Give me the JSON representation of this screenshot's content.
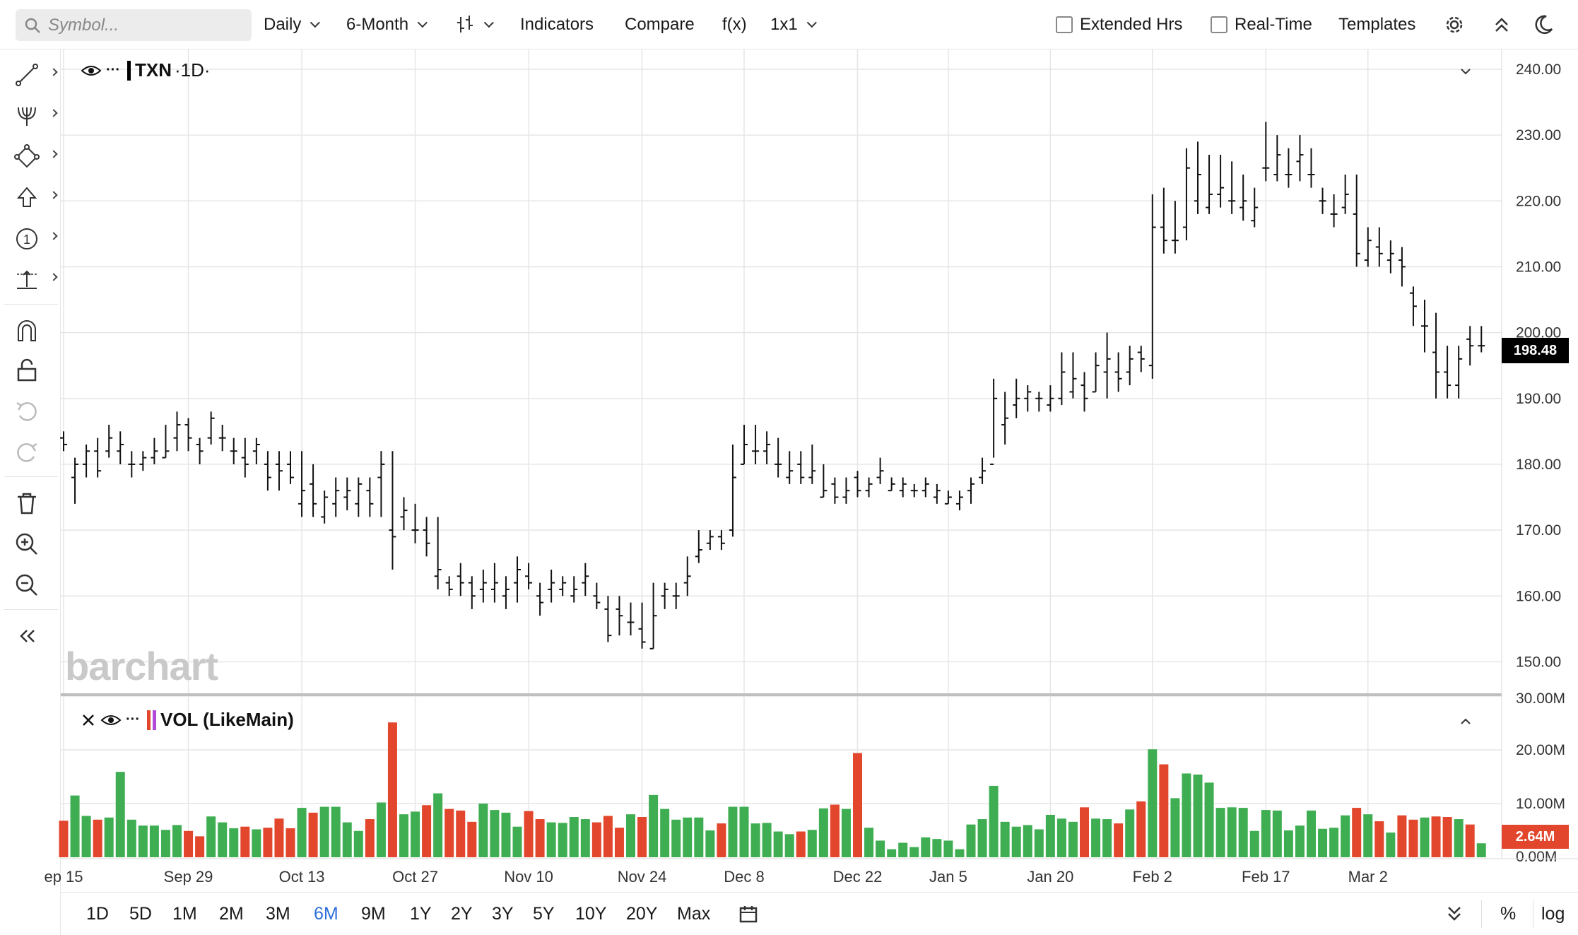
{
  "toolbar": {
    "search_placeholder": "Symbol...",
    "interval": "Daily",
    "period": "6-Month",
    "indicators": "Indicators",
    "compare": "Compare",
    "fx": "f(x)",
    "layout": "1x1",
    "extended_hours": "Extended Hrs",
    "real_time": "Real-Time",
    "templates": "Templates"
  },
  "legend": {
    "symbol": "TXN",
    "timeframe": "·1D·",
    "volume": "VOL (LikeMain)",
    "more": "···"
  },
  "watermark": "barchart",
  "colors": {
    "up": "#3fae52",
    "down": "#e2462c",
    "active_range": "#2d6fd9",
    "price_badge": "#000000"
  },
  "range_buttons": [
    "1D",
    "5D",
    "1M",
    "2M",
    "3M",
    "6M",
    "9M",
    "1Y",
    "2Y",
    "3Y",
    "5Y",
    "10Y",
    "20Y",
    "Max"
  ],
  "active_range": "6M",
  "bottom_right": {
    "percent": "%",
    "log": "log"
  },
  "chart_data": {
    "type": "ohlc_bar_with_volume",
    "symbol": "TXN",
    "interval": "1D",
    "last_price": "198.48",
    "last_volume": "2.64M",
    "price_axis": {
      "min": 145,
      "max": 243,
      "ticks": [
        "240.00",
        "230.00",
        "220.00",
        "210.00",
        "200.00",
        "190.00",
        "180.00",
        "170.00",
        "160.00",
        "150.00"
      ]
    },
    "volume_axis": {
      "max": 30,
      "unit": "M",
      "ticks": [
        "30.00M",
        "20.00M",
        "10.00M",
        "0.00M"
      ]
    },
    "x_labels": [
      "ep 15",
      "Sep 29",
      "Oct 13",
      "Oct 27",
      "Nov 10",
      "Nov 24",
      "Dec 8",
      "Dec 22",
      "Jan 5",
      "Jan 20",
      "Feb 2",
      "Feb 17",
      "Mar 2"
    ],
    "x_label_index": [
      0,
      11,
      21,
      31,
      41,
      51,
      60,
      70,
      78,
      87,
      96,
      106,
      115
    ],
    "bars": [
      [
        184,
        185,
        182,
        183,
        6.8
      ],
      [
        178,
        181,
        174,
        180,
        11.5
      ],
      [
        180,
        183,
        178,
        182,
        7.7
      ],
      [
        182,
        184,
        178,
        179,
        7.0
      ],
      [
        182,
        186,
        181,
        184,
        7.4
      ],
      [
        182,
        185,
        180,
        183,
        15.9
      ],
      [
        180,
        182,
        178,
        180,
        7.0
      ],
      [
        180,
        182,
        179,
        181,
        5.9
      ],
      [
        181,
        184,
        180,
        182,
        5.9
      ],
      [
        181,
        186,
        181,
        182,
        5.1
      ],
      [
        184,
        188,
        182,
        186,
        6.0
      ],
      [
        186,
        187,
        182,
        184,
        4.9
      ],
      [
        183,
        184,
        180,
        182,
        3.9
      ],
      [
        184,
        188,
        183,
        187,
        7.6
      ],
      [
        184,
        186,
        182,
        184,
        6.5
      ],
      [
        182,
        184,
        180,
        182,
        5.4
      ],
      [
        181,
        184,
        178,
        180,
        5.7
      ],
      [
        182,
        184,
        180,
        183,
        5.2
      ],
      [
        180,
        182,
        176,
        178,
        5.5
      ],
      [
        180,
        182,
        176,
        179,
        7.2
      ],
      [
        180,
        182,
        177,
        178,
        5.4
      ],
      [
        174,
        182,
        172,
        176,
        9.2
      ],
      [
        177,
        180,
        172,
        174,
        8.3
      ],
      [
        172,
        176,
        171,
        175,
        9.4
      ],
      [
        174,
        178,
        172,
        176,
        9.4
      ],
      [
        175,
        178,
        173,
        176,
        6.5
      ],
      [
        174,
        178,
        172,
        177,
        4.9
      ],
      [
        176,
        178,
        172,
        174,
        7.1
      ],
      [
        178,
        182,
        172,
        180,
        10.2
      ],
      [
        170,
        182,
        164,
        169,
        25.1
      ],
      [
        172,
        175,
        170,
        173,
        8.0
      ],
      [
        170,
        174,
        168,
        170,
        8.5
      ],
      [
        170,
        172,
        166,
        168,
        9.7
      ],
      [
        163,
        172,
        161,
        164,
        11.9
      ],
      [
        162,
        163,
        160,
        161,
        9.0
      ],
      [
        163,
        165,
        160,
        162,
        8.7
      ],
      [
        162,
        163,
        158,
        160,
        6.6
      ],
      [
        161,
        164,
        159,
        162,
        10.0
      ],
      [
        161,
        165,
        159,
        162,
        8.8
      ],
      [
        160,
        163,
        158,
        161,
        8.3
      ],
      [
        162,
        166,
        159,
        164,
        5.7
      ],
      [
        163,
        165,
        161,
        162,
        8.6
      ],
      [
        160,
        162,
        157,
        159,
        7.1
      ],
      [
        161,
        164,
        159,
        162,
        6.5
      ],
      [
        161,
        163,
        160,
        162,
        6.4
      ],
      [
        160,
        163,
        159,
        161,
        7.5
      ],
      [
        162,
        165,
        160,
        163,
        7.1
      ],
      [
        160,
        162,
        158,
        159,
        6.5
      ],
      [
        158,
        160,
        153,
        154,
        7.7
      ],
      [
        158,
        160,
        154,
        157,
        5.5
      ],
      [
        156,
        159,
        154,
        156,
        8.0
      ],
      [
        155,
        159,
        152,
        153,
        7.5
      ],
      [
        152,
        162,
        152,
        157,
        11.6
      ],
      [
        160,
        162,
        158,
        161,
        9.0
      ],
      [
        160,
        162,
        158,
        160,
        7.0
      ],
      [
        162,
        166,
        160,
        163,
        7.4
      ],
      [
        166,
        170,
        165,
        167,
        7.4
      ],
      [
        168,
        170,
        167,
        169,
        5.0
      ],
      [
        169,
        170,
        167,
        168,
        6.3
      ],
      [
        170,
        183,
        169,
        178,
        9.4
      ],
      [
        180,
        186,
        180,
        183,
        9.4
      ],
      [
        182,
        186,
        180,
        182,
        6.3
      ],
      [
        182,
        185,
        180,
        183,
        6.4
      ],
      [
        180,
        184,
        178,
        180,
        4.8
      ],
      [
        178,
        182,
        177,
        179,
        4.3
      ],
      [
        180,
        182,
        177,
        178,
        4.8
      ],
      [
        178,
        183,
        177,
        179,
        5.1
      ],
      [
        175,
        180,
        175,
        176,
        9.1
      ],
      [
        177,
        178,
        174,
        175,
        9.8
      ],
      [
        175,
        178,
        174,
        176,
        9.0
      ],
      [
        178,
        179,
        175,
        176,
        19.4
      ],
      [
        176,
        178,
        175,
        177,
        5.5
      ],
      [
        178,
        181,
        177,
        179,
        3.1
      ],
      [
        176,
        178,
        176,
        177,
        1.5
      ],
      [
        176,
        178,
        175,
        177,
        2.7
      ],
      [
        176,
        177,
        175,
        176,
        1.9
      ],
      [
        176,
        178,
        175,
        177,
        3.7
      ],
      [
        175,
        177,
        174,
        176,
        3.4
      ],
      [
        174,
        176,
        174,
        175,
        3.1
      ],
      [
        174,
        176,
        173,
        175,
        1.5
      ],
      [
        176,
        178,
        174,
        177,
        6.1
      ],
      [
        178,
        181,
        177,
        179,
        7.1
      ],
      [
        180,
        193,
        181,
        190,
        13.3
      ],
      [
        186,
        191,
        183,
        187,
        6.6
      ],
      [
        189,
        193,
        187,
        190,
        5.7
      ],
      [
        190,
        192,
        188,
        191,
        6.0
      ],
      [
        190,
        191,
        188,
        190,
        5.2
      ],
      [
        189,
        192,
        188,
        190,
        7.9
      ],
      [
        190,
        197,
        189,
        194,
        7.2
      ],
      [
        191,
        197,
        190,
        193,
        6.6
      ],
      [
        192,
        194,
        188,
        190,
        9.3
      ],
      [
        191,
        197,
        191,
        195,
        7.2
      ],
      [
        194,
        200,
        190,
        196,
        7.1
      ],
      [
        194,
        197,
        191,
        193,
        6.3
      ],
      [
        194,
        198,
        192,
        196,
        8.9
      ],
      [
        197,
        198,
        194,
        196,
        10.4
      ],
      [
        195,
        221,
        193,
        216,
        20.1
      ],
      [
        216,
        222,
        212,
        214,
        17.3
      ],
      [
        214,
        220,
        212,
        214,
        11.0
      ],
      [
        216,
        228,
        214,
        225,
        15.6
      ],
      [
        220,
        229,
        218,
        224,
        15.4
      ],
      [
        219,
        227,
        218,
        221,
        13.9
      ],
      [
        221,
        227,
        219,
        222,
        9.2
      ],
      [
        220,
        226,
        218,
        220,
        9.3
      ],
      [
        219,
        224,
        217,
        220,
        9.2
      ],
      [
        217,
        222,
        216,
        219,
        4.9
      ],
      [
        225,
        232,
        223,
        225,
        8.8
      ],
      [
        224,
        230,
        223,
        227,
        8.7
      ],
      [
        224,
        228,
        222,
        224,
        5.0
      ],
      [
        226,
        230,
        223,
        227,
        5.9
      ],
      [
        224,
        228,
        222,
        224,
        8.7
      ],
      [
        220,
        222,
        218,
        220,
        5.3
      ],
      [
        218,
        221,
        216,
        218,
        5.5
      ],
      [
        219,
        224,
        218,
        221,
        7.8
      ],
      [
        218,
        224,
        210,
        212,
        9.2
      ],
      [
        211,
        216,
        210,
        214,
        8.0
      ],
      [
        213,
        216,
        210,
        212,
        6.7
      ],
      [
        211,
        214,
        209,
        212,
        4.6
      ],
      [
        211,
        213,
        207,
        210,
        7.8
      ],
      [
        206,
        207,
        201,
        204,
        7.0
      ],
      [
        201,
        205,
        197,
        201,
        7.4
      ],
      [
        197,
        203,
        190,
        194,
        7.6
      ],
      [
        194,
        198,
        190,
        192,
        7.5
      ],
      [
        192,
        198,
        190,
        196,
        7.1
      ],
      [
        199,
        201,
        195,
        198,
        6.1
      ],
      [
        198,
        201,
        197,
        198,
        2.6
      ]
    ]
  }
}
